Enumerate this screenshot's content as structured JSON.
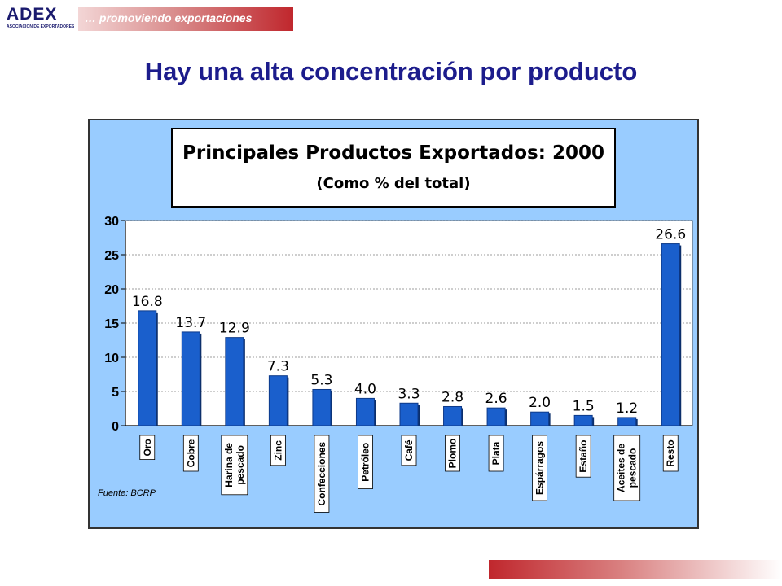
{
  "header": {
    "logo_text": "ADEX",
    "logo_subtext": "ASOCIACION DE EXPORTADORES",
    "tagline": "… promoviendo  exportaciones"
  },
  "slide": {
    "title": "Hay una alta concentración por producto"
  },
  "source_note": "Fuente: BCRP",
  "colors": {
    "bar": "#1a5fcc",
    "plot_background": "#99ccff",
    "title_color": "#1c1c8c",
    "accent_red": "#c0272d"
  },
  "chart_data": {
    "type": "bar",
    "title": "Principales Productos Exportados: 2000",
    "subtitle": "(Como % del total)",
    "xlabel": "",
    "ylabel": "",
    "categories": [
      "Oro",
      "Cobre",
      "Harina de pescado",
      "Zinc",
      "Confecciones",
      "Petróleo",
      "Café",
      "Plomo",
      "Plata",
      "Espárragos",
      "Estaño",
      "Aceites de pescado",
      "Resto"
    ],
    "category_lines": [
      [
        "Oro"
      ],
      [
        "Cobre"
      ],
      [
        "Harina de",
        "pescado"
      ],
      [
        "Zinc"
      ],
      [
        "Confecciones"
      ],
      [
        "Petróleo"
      ],
      [
        "Café"
      ],
      [
        "Plomo"
      ],
      [
        "Plata"
      ],
      [
        "Espárragos"
      ],
      [
        "Estaño"
      ],
      [
        "Aceites de",
        "pescado"
      ],
      [
        "Resto"
      ]
    ],
    "values": [
      16.8,
      13.7,
      12.9,
      7.3,
      5.3,
      4.0,
      3.3,
      2.8,
      2.6,
      2.0,
      1.5,
      1.2,
      26.6
    ],
    "value_labels": [
      "16.8",
      "13.7",
      "12.9",
      "7.3",
      "5.3",
      "4.0",
      "3.3",
      "2.8",
      "2.6",
      "2.0",
      "1.5",
      "1.2",
      "26.6"
    ],
    "ylim": [
      0,
      30
    ],
    "yticks": [
      0,
      5,
      10,
      15,
      20,
      25,
      30
    ],
    "grid": true,
    "legend": "none"
  }
}
